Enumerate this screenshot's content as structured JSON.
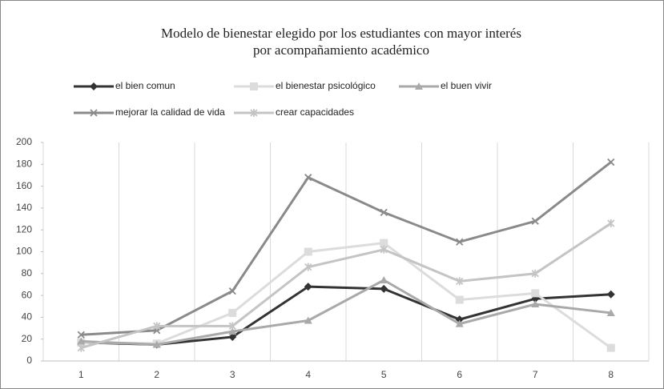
{
  "chart_data": {
    "type": "line",
    "title": [
      "Modelo de bienestar elegido por los estudiantes con mayor interés",
      "por acompañamiento académico"
    ],
    "categories": [
      "1",
      "2",
      "3",
      "4",
      "5",
      "6",
      "7",
      "8"
    ],
    "series": [
      {
        "name": "el bien comun",
        "color": "#333333",
        "marker": "diamond",
        "values": [
          17,
          15,
          22,
          68,
          66,
          38,
          57,
          61
        ]
      },
      {
        "name": "el bienestar psicológico",
        "color": "#dcdcdc",
        "marker": "square",
        "values": [
          17,
          16,
          44,
          100,
          108,
          56,
          62,
          12
        ]
      },
      {
        "name": "el buen vivir",
        "color": "#a9a9a9",
        "marker": "triangle",
        "values": [
          18,
          15,
          27,
          37,
          74,
          34,
          52,
          44
        ]
      },
      {
        "name": "mejorar la calidad de vida",
        "color": "#8a8a8a",
        "marker": "x",
        "values": [
          24,
          28,
          64,
          168,
          136,
          109,
          128,
          182
        ]
      },
      {
        "name": "crear capacidades",
        "color": "#c4c4c4",
        "marker": "star",
        "values": [
          12,
          32,
          32,
          86,
          102,
          73,
          80,
          126
        ]
      }
    ],
    "ylim": [
      0,
      200
    ],
    "yticks": [
      0,
      20,
      40,
      60,
      80,
      100,
      120,
      140,
      160,
      180,
      200
    ],
    "grid": "vertical"
  }
}
